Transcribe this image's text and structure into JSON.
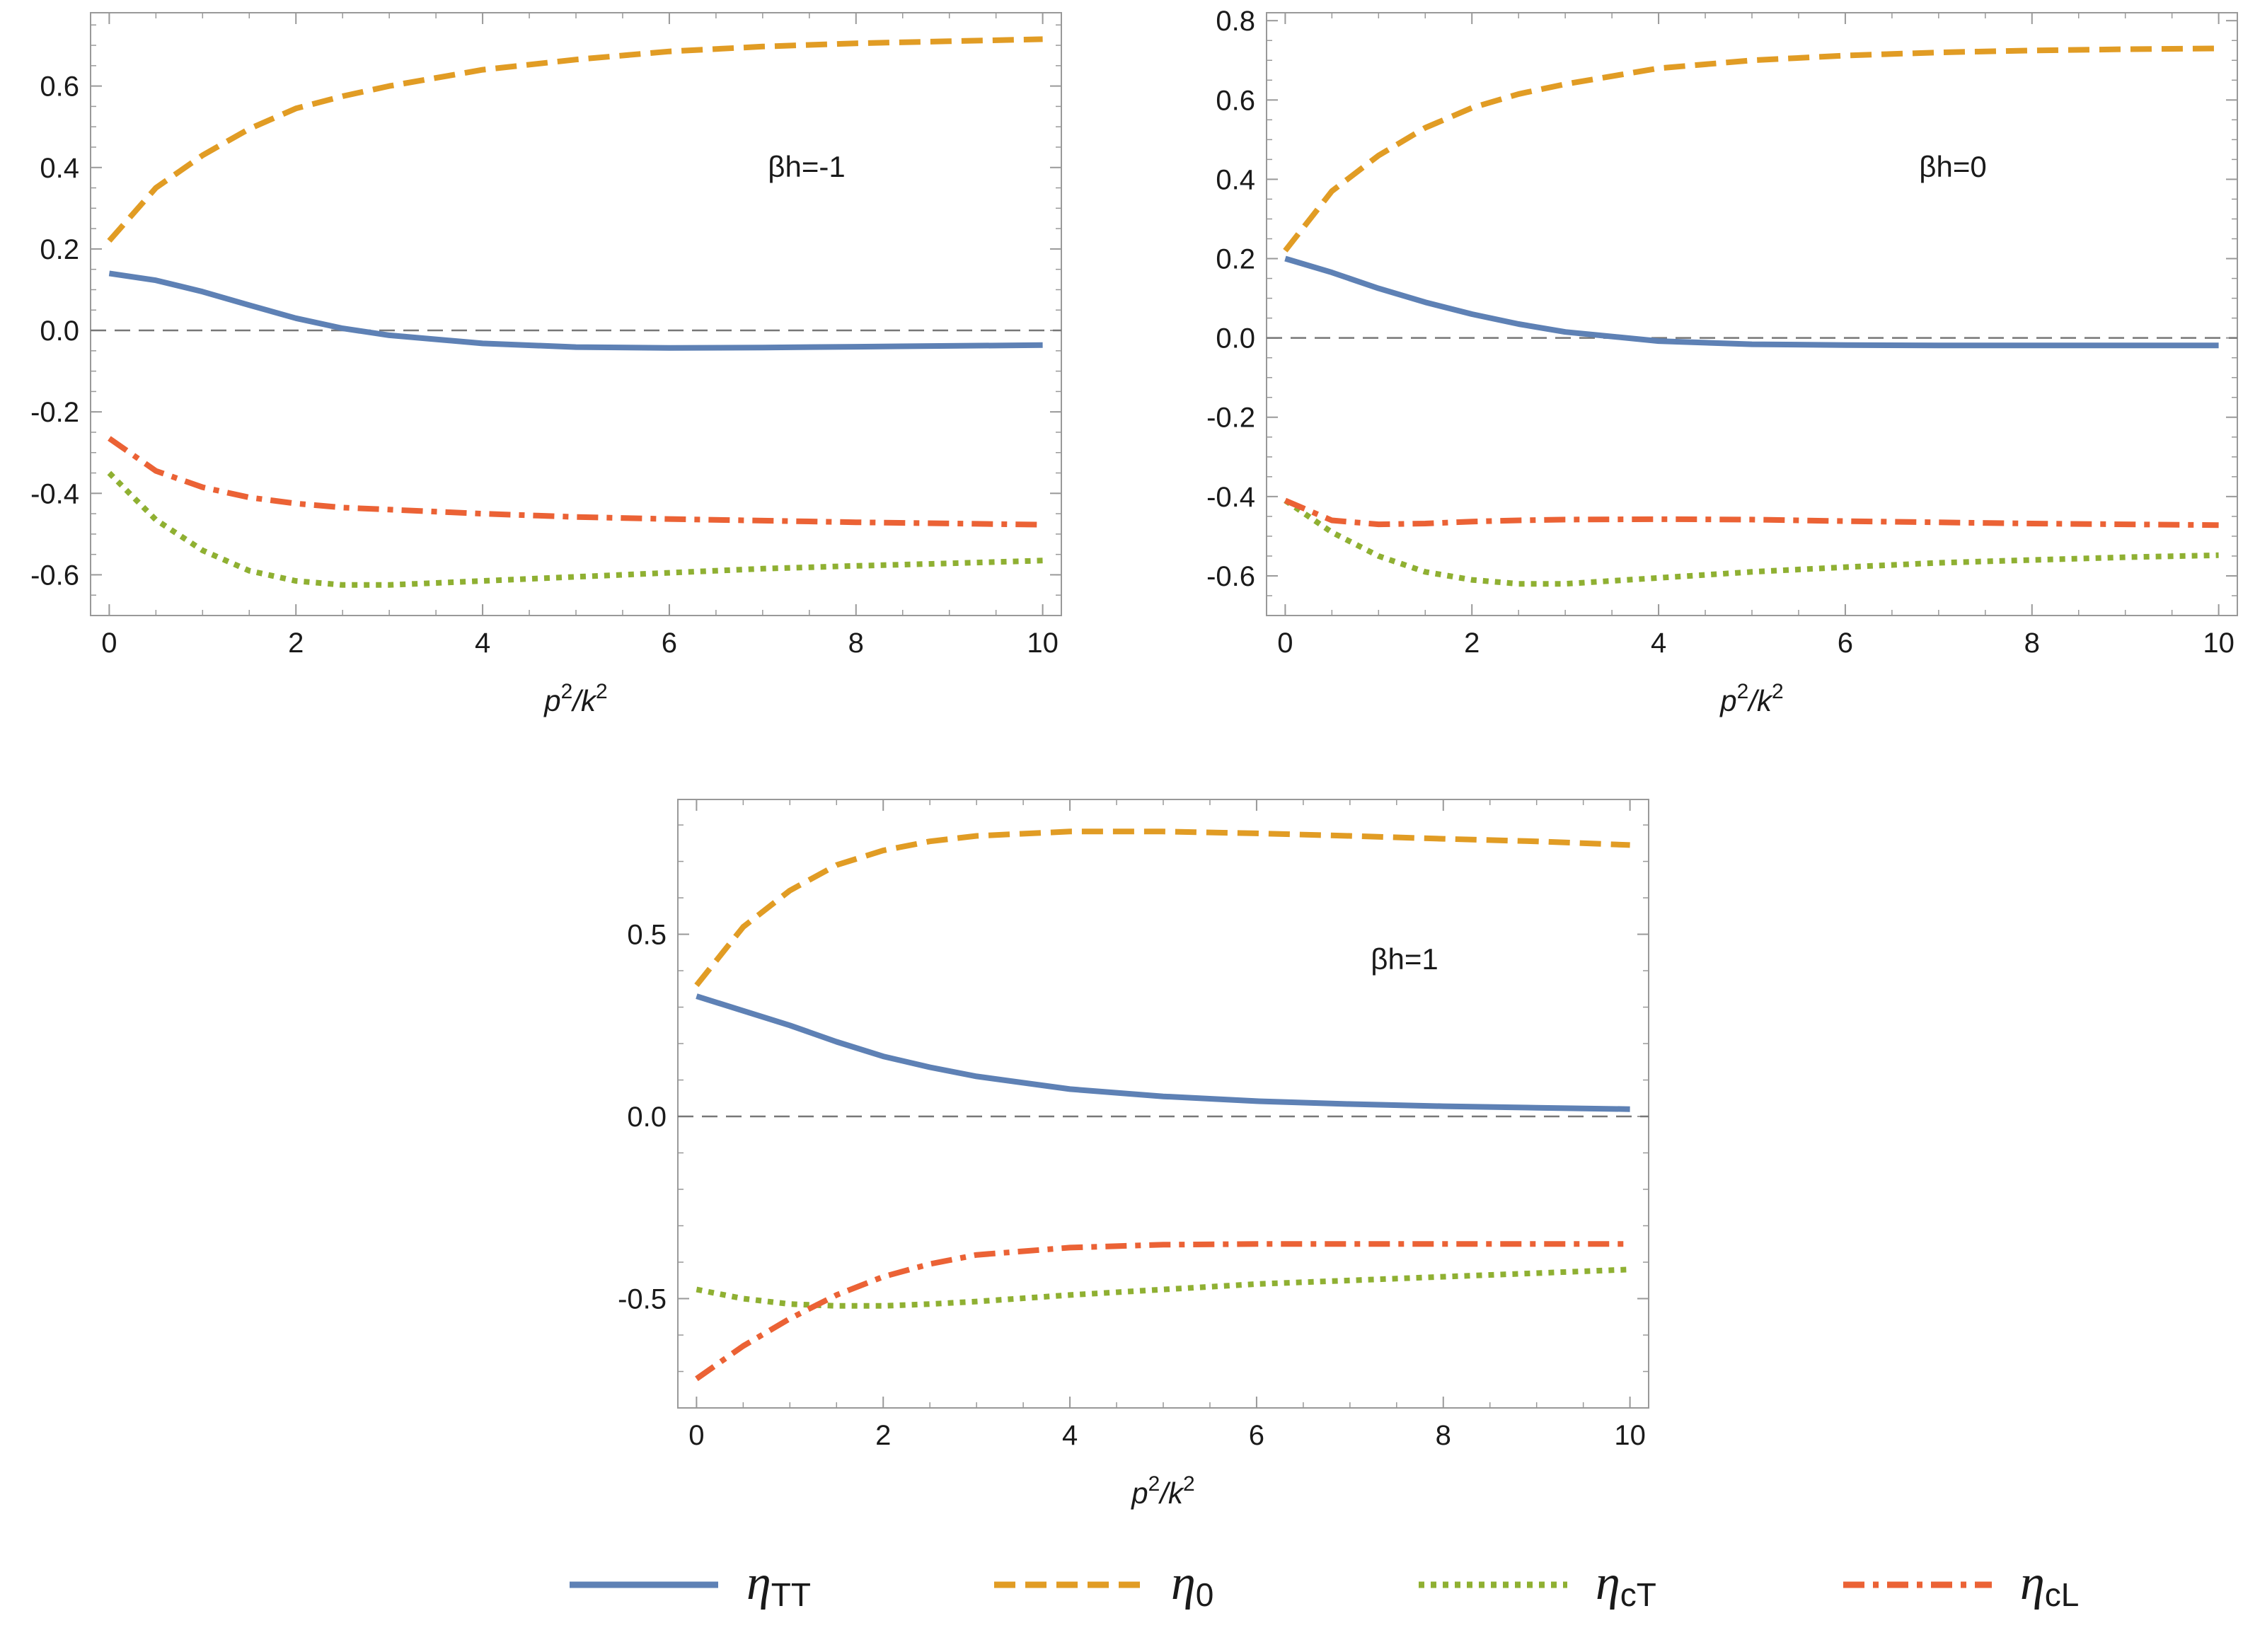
{
  "colors": {
    "series_colors": [
      "#5e81b5",
      "#e19c24",
      "#8fb032",
      "#eb6235"
    ],
    "frame": "#999999",
    "zero_line": "#777777",
    "text": "#1a1a1a"
  },
  "legend": {
    "placement": "bottom-center",
    "items": [
      {
        "symbol": "η",
        "sub": "TT",
        "dash": "solid"
      },
      {
        "symbol": "η",
        "sub": "0",
        "dash": "dashed"
      },
      {
        "symbol": "η",
        "sub": "cT",
        "dash": "dotted"
      },
      {
        "symbol": "η",
        "sub": "cL",
        "dash": "dashdot"
      }
    ]
  },
  "chart_data": [
    {
      "type": "line",
      "title": "",
      "annotation": "βh=-1",
      "xlabel": "p2/k2",
      "xlabel_main": "p",
      "xlabel_sup1": "2",
      "xlabel_mid": "/k",
      "xlabel_sup2": "2",
      "xlim": [
        -0.2,
        10.2
      ],
      "ylim": [
        -0.7,
        0.78
      ],
      "xticks": [
        0,
        2,
        4,
        6,
        8,
        10
      ],
      "xtick_labels": [
        "0",
        "2",
        "4",
        "6",
        "8",
        "10"
      ],
      "yticks": [
        -0.6,
        -0.4,
        -0.2,
        0.0,
        0.2,
        0.4,
        0.6
      ],
      "ytick_labels": [
        "-0.6",
        "-0.4",
        "-0.2",
        "0.0",
        "0.2",
        "0.4",
        "0.6"
      ],
      "zero_line": true,
      "x": [
        0,
        0.5,
        1,
        1.5,
        2,
        2.5,
        3,
        4,
        5,
        6,
        7,
        8,
        9,
        10
      ],
      "series": [
        {
          "name": "ηTT",
          "dash": "solid",
          "values": [
            0.14,
            0.123,
            0.095,
            0.062,
            0.03,
            0.005,
            -0.012,
            -0.032,
            -0.041,
            -0.043,
            -0.042,
            -0.04,
            -0.038,
            -0.036
          ]
        },
        {
          "name": "η0",
          "dash": "dashed",
          "values": [
            0.22,
            0.35,
            0.43,
            0.495,
            0.545,
            0.575,
            0.6,
            0.64,
            0.665,
            0.685,
            0.697,
            0.705,
            0.71,
            0.715
          ]
        },
        {
          "name": "ηcT",
          "dash": "dotted",
          "values": [
            -0.35,
            -0.465,
            -0.54,
            -0.59,
            -0.615,
            -0.625,
            -0.625,
            -0.615,
            -0.605,
            -0.595,
            -0.585,
            -0.578,
            -0.572,
            -0.565
          ]
        },
        {
          "name": "ηcL",
          "dash": "dashdot",
          "values": [
            -0.265,
            -0.345,
            -0.385,
            -0.41,
            -0.425,
            -0.435,
            -0.44,
            -0.45,
            -0.458,
            -0.463,
            -0.467,
            -0.471,
            -0.474,
            -0.477
          ]
        }
      ]
    },
    {
      "type": "line",
      "title": "",
      "annotation": "βh=0",
      "xlabel": "p2/k2",
      "xlabel_main": "p",
      "xlabel_sup1": "2",
      "xlabel_mid": "/k",
      "xlabel_sup2": "2",
      "xlim": [
        -0.2,
        10.2
      ],
      "ylim": [
        -0.7,
        0.82
      ],
      "xticks": [
        0,
        2,
        4,
        6,
        8,
        10
      ],
      "xtick_labels": [
        "0",
        "2",
        "4",
        "6",
        "8",
        "10"
      ],
      "yticks": [
        -0.6,
        -0.4,
        -0.2,
        0.0,
        0.2,
        0.4,
        0.6,
        0.8
      ],
      "ytick_labels": [
        "-0.6",
        "-0.4",
        "-0.2",
        "0.0",
        "0.2",
        "0.4",
        "0.6",
        "0.8"
      ],
      "zero_line": true,
      "x": [
        0,
        0.5,
        1,
        1.5,
        2,
        2.5,
        3,
        4,
        5,
        6,
        7,
        8,
        9,
        10
      ],
      "series": [
        {
          "name": "ηTT",
          "dash": "solid",
          "values": [
            0.2,
            0.165,
            0.125,
            0.09,
            0.06,
            0.035,
            0.015,
            -0.008,
            -0.016,
            -0.018,
            -0.019,
            -0.019,
            -0.019,
            -0.019
          ]
        },
        {
          "name": "η0",
          "dash": "dashed",
          "values": [
            0.22,
            0.37,
            0.46,
            0.53,
            0.58,
            0.615,
            0.64,
            0.68,
            0.7,
            0.712,
            0.72,
            0.725,
            0.728,
            0.73
          ]
        },
        {
          "name": "ηcT",
          "dash": "dotted",
          "values": [
            -0.41,
            -0.49,
            -0.55,
            -0.59,
            -0.61,
            -0.62,
            -0.62,
            -0.605,
            -0.59,
            -0.578,
            -0.567,
            -0.56,
            -0.553,
            -0.548
          ]
        },
        {
          "name": "ηcL",
          "dash": "dashdot",
          "values": [
            -0.41,
            -0.46,
            -0.47,
            -0.468,
            -0.463,
            -0.46,
            -0.458,
            -0.457,
            -0.458,
            -0.462,
            -0.465,
            -0.468,
            -0.47,
            -0.472
          ]
        }
      ]
    },
    {
      "type": "line",
      "title": "",
      "annotation": "βh=1",
      "xlabel": "p2/k2",
      "xlabel_main": "p",
      "xlabel_sup1": "2",
      "xlabel_mid": "/k",
      "xlabel_sup2": "2",
      "xlim": [
        -0.2,
        10.2
      ],
      "ylim": [
        -0.8,
        0.87
      ],
      "xticks": [
        0,
        2,
        4,
        6,
        8,
        10
      ],
      "xtick_labels": [
        "0",
        "2",
        "4",
        "6",
        "8",
        "10"
      ],
      "yticks": [
        -0.5,
        0.0,
        0.5
      ],
      "ytick_labels": [
        "-0.5",
        "0.0",
        "0.5"
      ],
      "zero_line": true,
      "x": [
        0,
        0.5,
        1,
        1.5,
        2,
        2.5,
        3,
        4,
        5,
        6,
        7,
        8,
        9,
        10
      ],
      "series": [
        {
          "name": "ηTT",
          "dash": "solid",
          "values": [
            0.33,
            0.29,
            0.25,
            0.205,
            0.165,
            0.135,
            0.11,
            0.075,
            0.055,
            0.042,
            0.034,
            0.028,
            0.024,
            0.02
          ]
        },
        {
          "name": "η0",
          "dash": "dashed",
          "values": [
            0.36,
            0.52,
            0.62,
            0.69,
            0.73,
            0.755,
            0.77,
            0.782,
            0.782,
            0.777,
            0.77,
            0.762,
            0.755,
            0.745
          ]
        },
        {
          "name": "ηcT",
          "dash": "dotted",
          "values": [
            -0.475,
            -0.5,
            -0.515,
            -0.52,
            -0.52,
            -0.515,
            -0.508,
            -0.49,
            -0.475,
            -0.46,
            -0.45,
            -0.44,
            -0.43,
            -0.42
          ]
        },
        {
          "name": "ηcL",
          "dash": "dashdot",
          "values": [
            -0.72,
            -0.63,
            -0.555,
            -0.49,
            -0.44,
            -0.405,
            -0.38,
            -0.36,
            -0.352,
            -0.35,
            -0.35,
            -0.35,
            -0.35,
            -0.35
          ]
        }
      ]
    }
  ]
}
